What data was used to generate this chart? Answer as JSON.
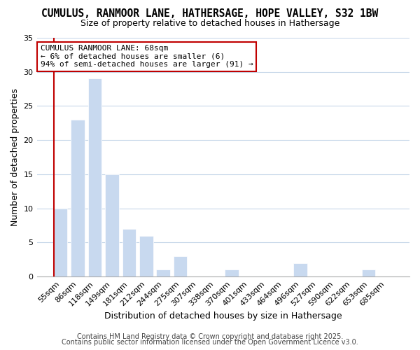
{
  "title": "CUMULUS, RANMOOR LANE, HATHERSAGE, HOPE VALLEY, S32 1BW",
  "subtitle": "Size of property relative to detached houses in Hathersage",
  "xlabel": "Distribution of detached houses by size in Hathersage",
  "ylabel": "Number of detached properties",
  "bar_color": "#c8d9ef",
  "highlight_color": "#c00000",
  "categories": [
    "55sqm",
    "86sqm",
    "118sqm",
    "149sqm",
    "181sqm",
    "212sqm",
    "244sqm",
    "275sqm",
    "307sqm",
    "338sqm",
    "370sqm",
    "401sqm",
    "433sqm",
    "464sqm",
    "496sqm",
    "527sqm",
    "590sqm",
    "622sqm",
    "653sqm",
    "685sqm"
  ],
  "values": [
    10,
    23,
    29,
    15,
    7,
    6,
    1,
    3,
    0,
    0,
    1,
    0,
    0,
    0,
    2,
    0,
    0,
    0,
    1,
    0
  ],
  "highlight_bar_index": 0,
  "ylim": [
    0,
    35
  ],
  "yticks": [
    0,
    5,
    10,
    15,
    20,
    25,
    30,
    35
  ],
  "annotation_title": "CUMULUS RANMOOR LANE: 68sqm",
  "annotation_line1": "← 6% of detached houses are smaller (6)",
  "annotation_line2": "94% of semi-detached houses are larger (91) →",
  "footer1": "Contains HM Land Registry data © Crown copyright and database right 2025.",
  "footer2": "Contains public sector information licensed under the Open Government Licence v3.0.",
  "bg_color": "#ffffff",
  "grid_color": "#c8d8ea",
  "title_fontsize": 10.5,
  "subtitle_fontsize": 9,
  "axis_label_fontsize": 9,
  "tick_fontsize": 8,
  "annotation_fontsize": 8,
  "footer_fontsize": 7
}
